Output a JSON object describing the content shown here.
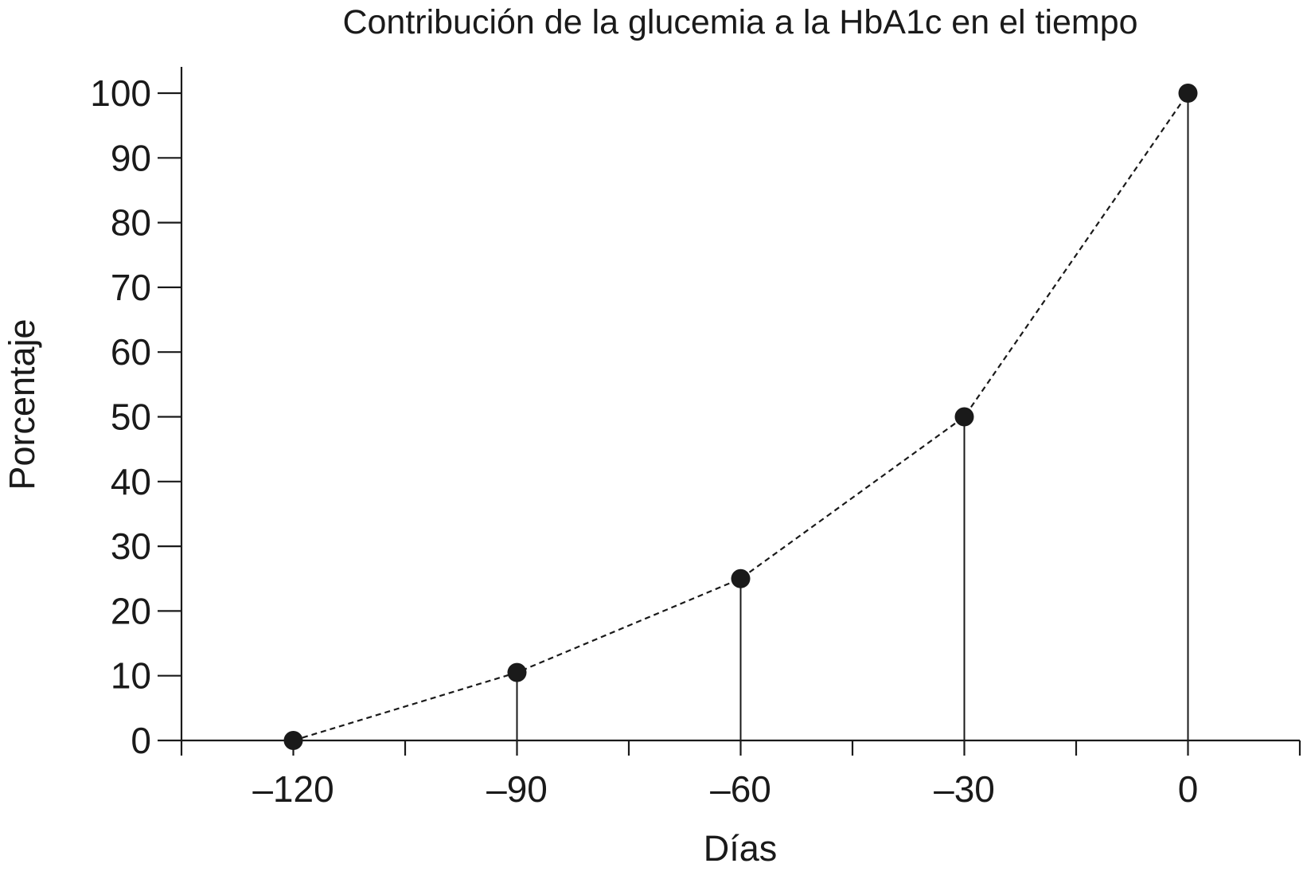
{
  "chart_data": {
    "type": "line",
    "title": "Contribución de la glucemia a la HbA1c en el tiempo",
    "xlabel": "Días",
    "ylabel": "Porcentaje",
    "x": [
      -120,
      -90,
      -60,
      -30,
      0
    ],
    "series": [
      {
        "values": [
          0,
          10.5,
          25,
          50,
          100
        ]
      }
    ],
    "xlim": [
      -135,
      15
    ],
    "ylim": [
      0,
      100
    ],
    "xticks": [
      -135,
      -120,
      -105,
      -90,
      -75,
      -60,
      -45,
      -30,
      -15,
      0,
      15
    ],
    "xtick_labels": [
      {
        "value": -120,
        "label": "–120"
      },
      {
        "value": -90,
        "label": "–90"
      },
      {
        "value": -60,
        "label": "–60"
      },
      {
        "value": -30,
        "label": "–30"
      },
      {
        "value": 0,
        "label": "0"
      }
    ],
    "yticks": [
      0,
      10,
      20,
      30,
      40,
      50,
      60,
      70,
      80,
      90,
      100
    ],
    "line_style": "dashed",
    "drop_lines": true,
    "grid": false,
    "legend": false,
    "colors": {
      "ink": "#1a1a1a",
      "background": "#ffffff"
    }
  }
}
